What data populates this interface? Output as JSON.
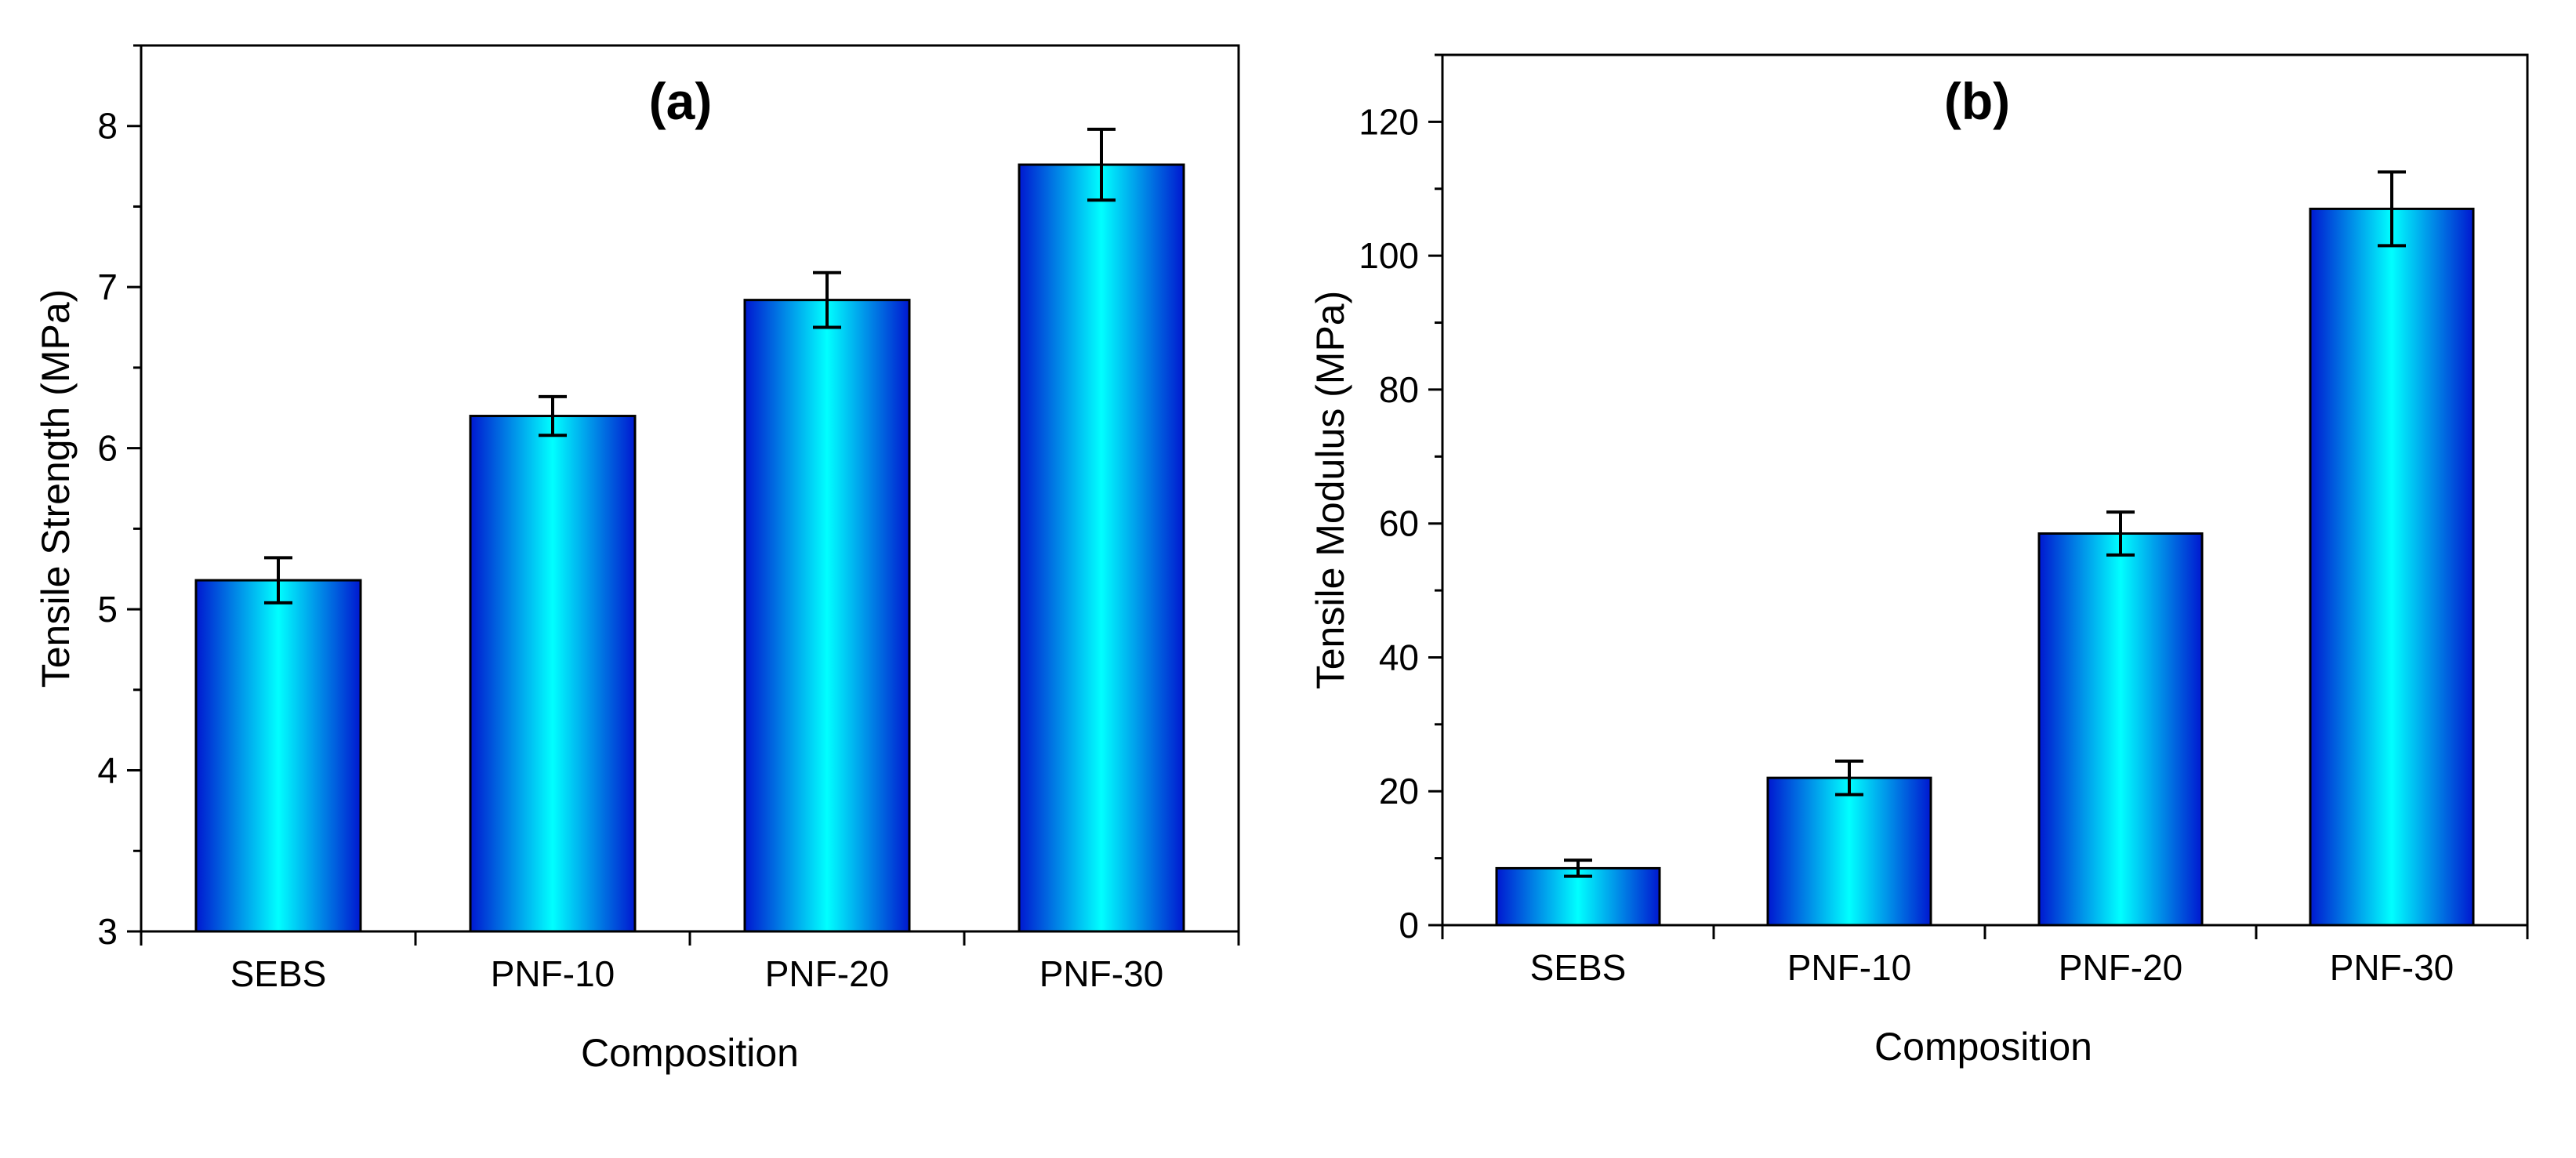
{
  "figure": {
    "colors": {
      "bar_edge": "#0018d0",
      "bar_center": "#00ffff",
      "bar_outline": "#000000",
      "axis": "#000000",
      "background": "#ffffff"
    }
  },
  "chart_data": [
    {
      "type": "bar",
      "panel_label": "(a)",
      "title": "",
      "xlabel": "Composition",
      "ylabel": "Tensile Strength (MPa)",
      "categories": [
        "SEBS",
        "PNF-10",
        "PNF-20",
        "PNF-30"
      ],
      "values": [
        5.18,
        6.2,
        6.92,
        7.76
      ],
      "errors": [
        0.14,
        0.12,
        0.17,
        0.22
      ],
      "ylim": [
        3,
        8.5
      ],
      "yticks": [
        3,
        4,
        5,
        6,
        7,
        8
      ],
      "ytick_labels": [
        "3",
        "4",
        "5",
        "6",
        "7",
        "8"
      ],
      "grid": false
    },
    {
      "type": "bar",
      "panel_label": "(b)",
      "title": "",
      "xlabel": "Composition",
      "ylabel": "Tensile Modulus (MPa)",
      "categories": [
        "SEBS",
        "PNF-10",
        "PNF-20",
        "PNF-30"
      ],
      "values": [
        8.5,
        22,
        58.5,
        107
      ],
      "errors": [
        1.2,
        2.5,
        3.2,
        5.5
      ],
      "ylim": [
        0,
        130
      ],
      "yticks": [
        0,
        20,
        40,
        60,
        80,
        100,
        120
      ],
      "ytick_labels": [
        "0",
        "20",
        "40",
        "60",
        "80",
        "100",
        "120"
      ],
      "grid": false
    }
  ]
}
